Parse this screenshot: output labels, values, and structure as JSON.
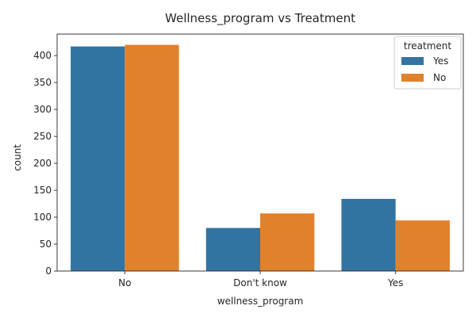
{
  "chart_data": {
    "type": "bar",
    "title": "Wellness_program vs Treatment",
    "xlabel": "wellness_program",
    "ylabel": "count",
    "categories": [
      "No",
      "Don't know",
      "Yes"
    ],
    "series": [
      {
        "name": "Yes",
        "values": [
          417,
          80,
          134
        ],
        "color": "#3274a1"
      },
      {
        "name": "No",
        "values": [
          420,
          107,
          94
        ],
        "color": "#e1812c"
      }
    ],
    "ylim": [
      0,
      440
    ],
    "yticks": [
      0,
      50,
      100,
      150,
      200,
      250,
      300,
      350,
      400
    ],
    "legend": {
      "title": "treatment",
      "placement": "top-right"
    },
    "grid": false
  }
}
